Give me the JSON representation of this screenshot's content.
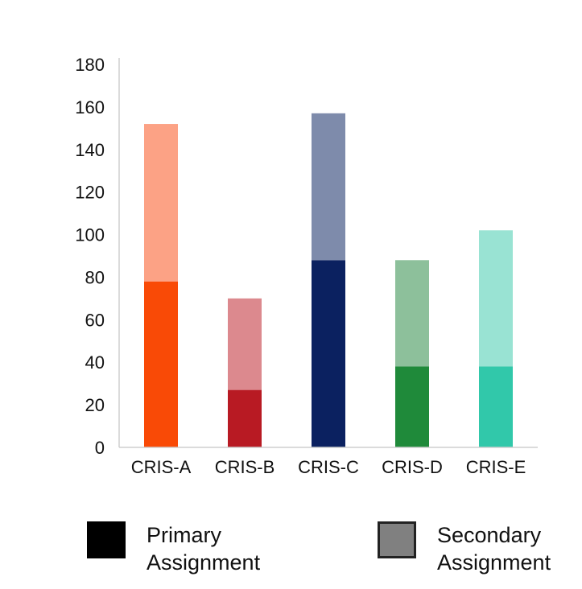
{
  "chart_data": {
    "type": "bar",
    "stacked": true,
    "categories": [
      "CRIS-A",
      "CRIS-B",
      "CRIS-C",
      "CRIS-D",
      "CRIS-E"
    ],
    "series": [
      {
        "name": "Primary Assignment",
        "values": [
          78,
          27,
          88,
          38,
          38
        ]
      },
      {
        "name": "Secondary Assignment",
        "values": [
          74,
          43,
          69,
          50,
          64
        ]
      }
    ],
    "colors": {
      "primary": [
        "#f94a06",
        "#b81a23",
        "#0b2160",
        "#1f8a3a",
        "#31c8aa"
      ],
      "secondary": [
        "#fca285",
        "#dc898e",
        "#7e8bab",
        "#8dc09b",
        "#99e3d3"
      ]
    },
    "ylim": [
      0,
      180
    ],
    "yticks": [
      0,
      20,
      40,
      60,
      80,
      100,
      120,
      140,
      160,
      180
    ],
    "grid": false,
    "legend": {
      "placement": "bottom",
      "items": [
        {
          "label": "Primary\nAssignment",
          "color": "#000000"
        },
        {
          "label": "Secondary\nAssignment",
          "color": "#808080"
        }
      ]
    }
  }
}
